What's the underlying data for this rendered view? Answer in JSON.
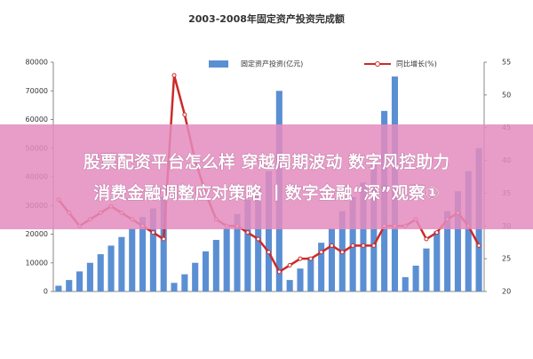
{
  "chart_data": {
    "type": "bar_line",
    "title": "2003-2008年固定资产投资完成额",
    "categories": [
      null,
      null,
      null,
      null,
      null,
      null,
      null,
      null,
      null,
      null,
      null,
      null,
      null,
      null,
      null,
      null,
      null,
      null,
      null,
      null,
      null,
      null,
      null,
      null,
      null,
      null,
      null,
      null,
      null,
      null,
      null,
      null,
      null,
      null,
      null,
      null,
      null,
      null,
      null,
      null,
      null
    ],
    "series": [
      {
        "name": "固定资产投资(亿元)",
        "color": "#5b8fd3",
        "axis": "y",
        "values": [
          2000,
          4000,
          7000,
          10000,
          13000,
          16000,
          19000,
          22000,
          26000,
          29000,
          33000,
          3000,
          6000,
          10000,
          14000,
          18000,
          22000,
          27000,
          32000,
          37000,
          42000,
          70000,
          4000,
          8000,
          12000,
          17000,
          22000,
          28000,
          33000,
          38000,
          45000,
          63000,
          75000,
          5000,
          9000,
          15000,
          21000,
          28000,
          35000,
          42000,
          50000
        ]
      },
      {
        "name": "同比增长(%)",
        "color": "#cc2a2a",
        "axis": "y2",
        "values": [
          34,
          32,
          30,
          31,
          32,
          33,
          32,
          31,
          30,
          29,
          28,
          53,
          47,
          40,
          35,
          31,
          30,
          30,
          29,
          28,
          26,
          23,
          24,
          25,
          25,
          26,
          27,
          26,
          27,
          27,
          27,
          30,
          30,
          30,
          31,
          28,
          29,
          31,
          32,
          30,
          27
        ]
      }
    ],
    "ylim": [
      0,
      80000
    ],
    "yticks": [
      0,
      10000,
      20000,
      30000,
      40000,
      50000,
      60000,
      70000,
      80000
    ],
    "y2lim": [
      20,
      55
    ],
    "y2ticks": [
      20,
      25,
      30,
      35,
      40,
      45,
      50,
      55
    ],
    "banner": [
      "股票配资平台怎么样 穿越周期波动 数字风控助力",
      "消费金融调整应对策略 丨数字金融“深”观察①"
    ]
  }
}
